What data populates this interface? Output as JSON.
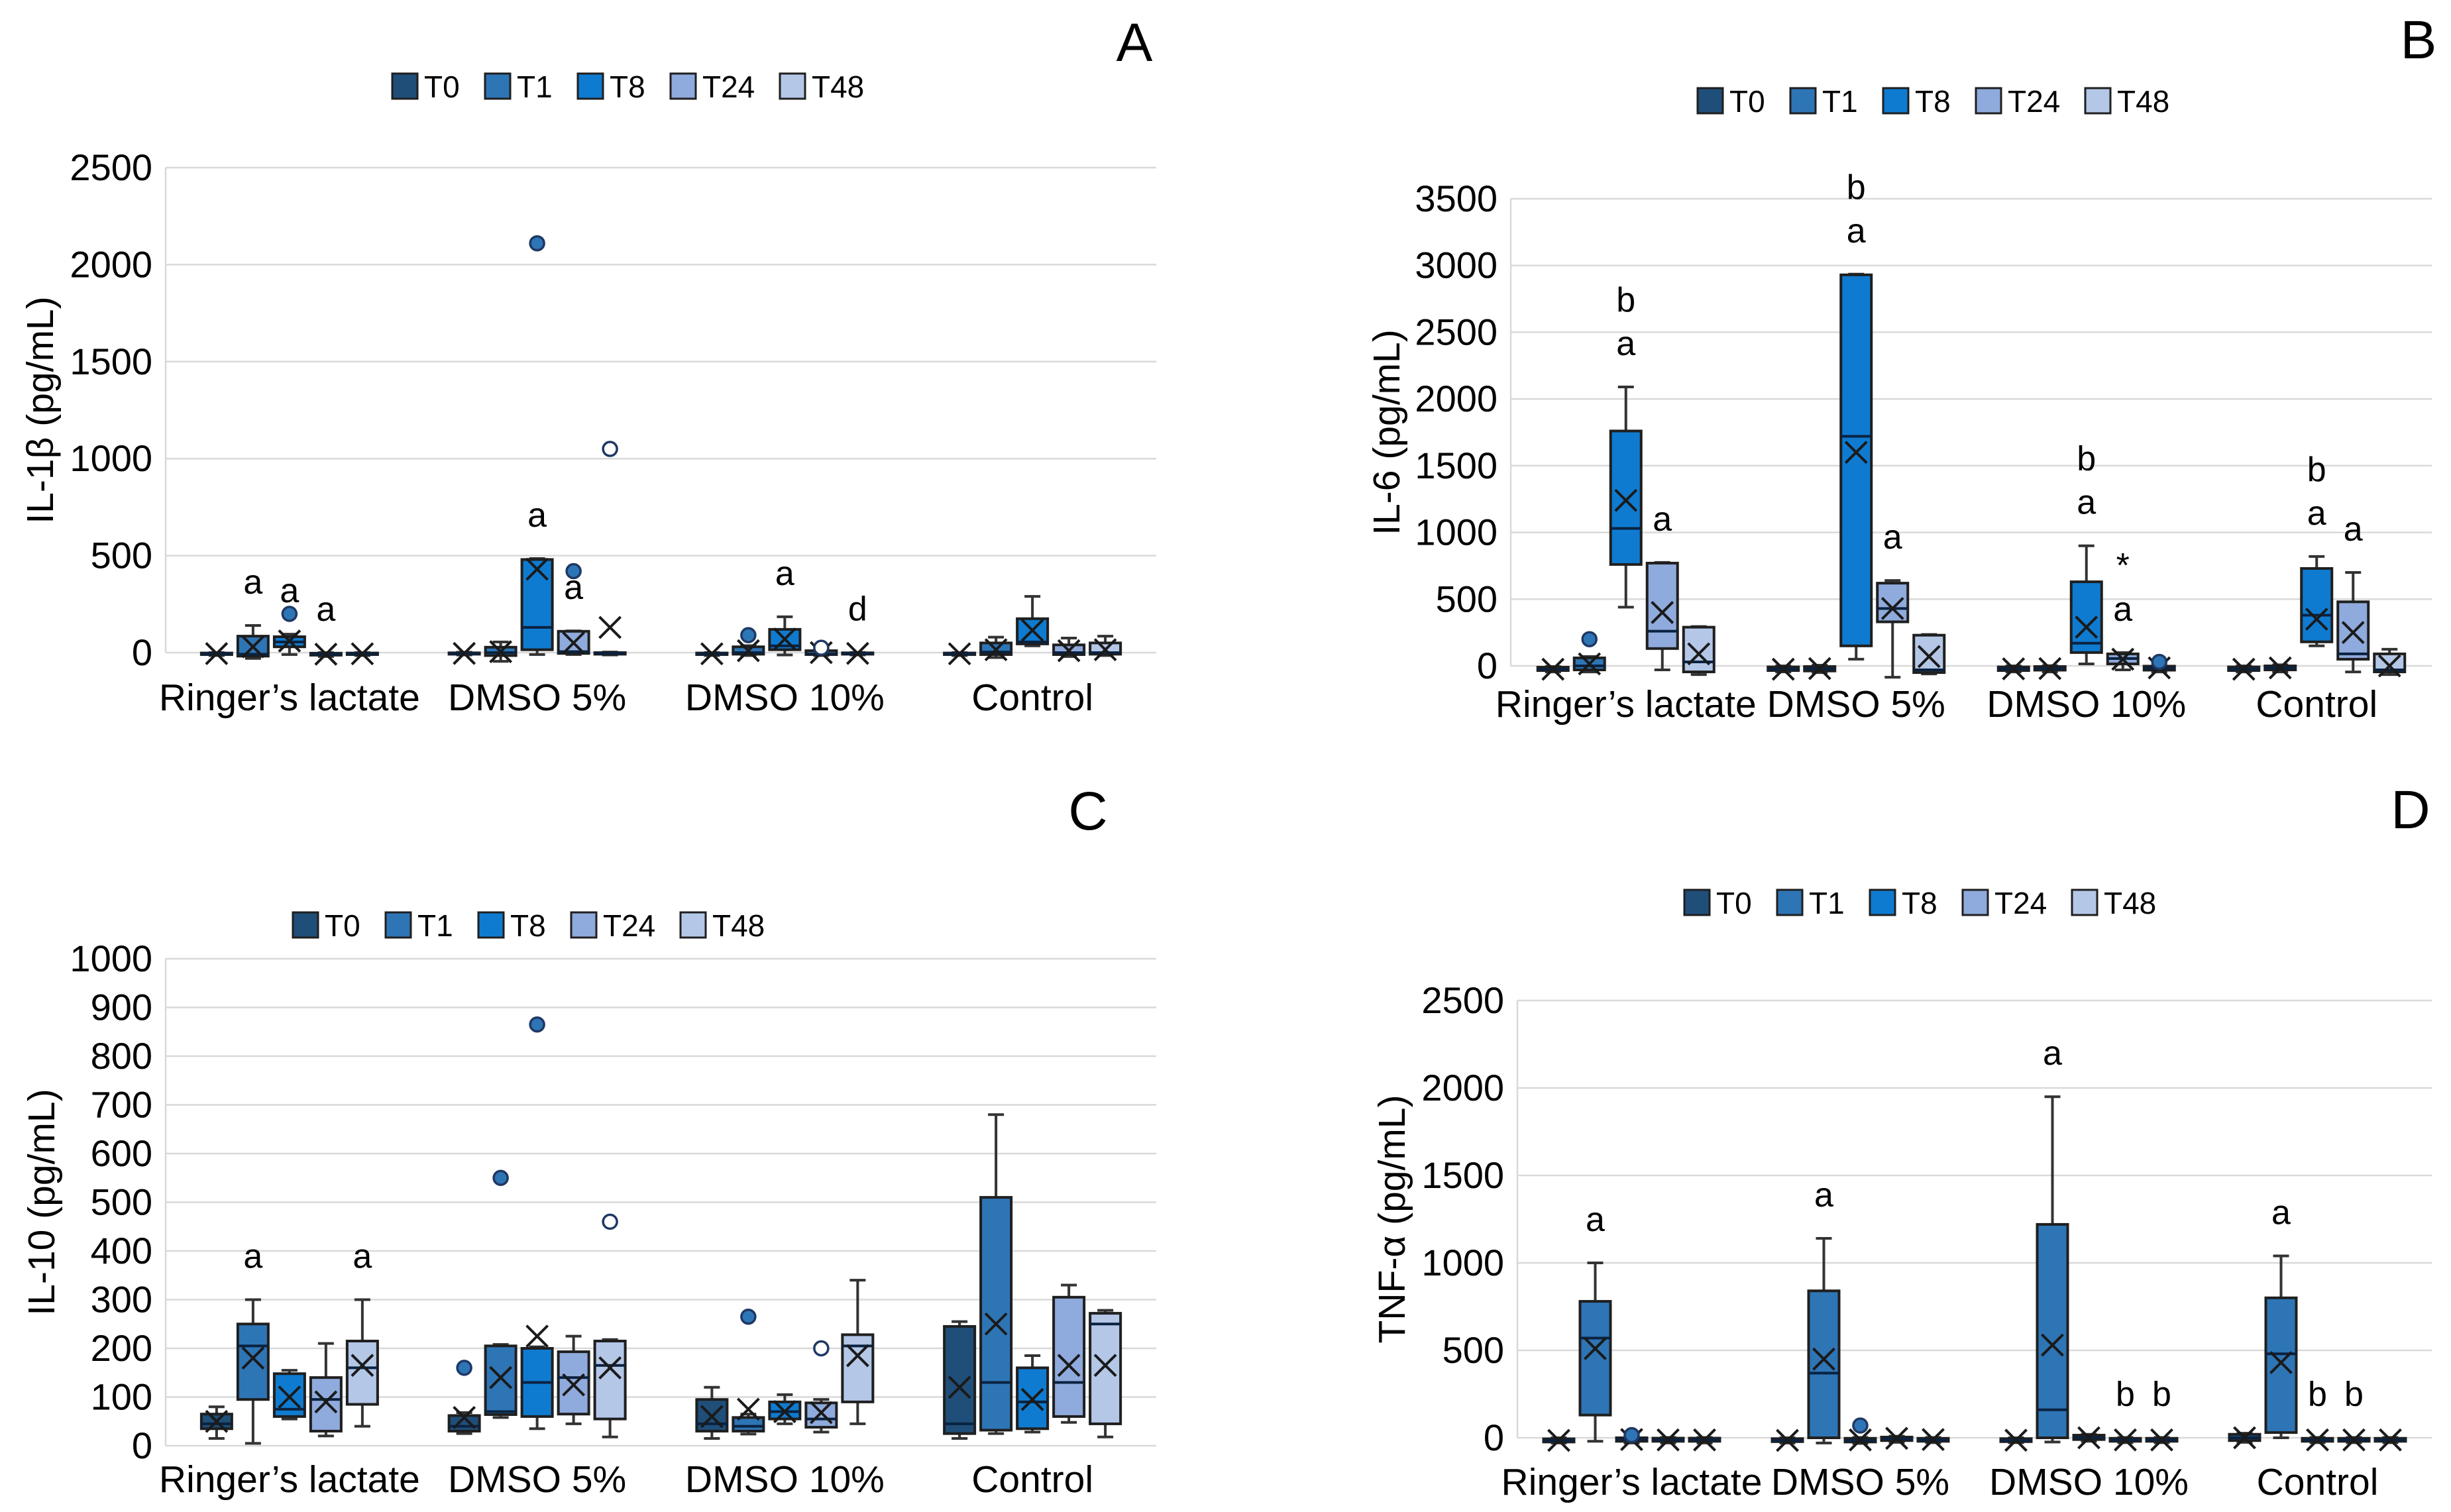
{
  "figure": {
    "background": "#ffffff",
    "description_visible_text_only": true
  },
  "legend": {
    "labels": [
      "T0",
      "T1",
      "T8",
      "T24",
      "T48"
    ]
  },
  "colors": {
    "T0": "#1F4E79",
    "T1": "#2E75B6",
    "T8": "#0F7BD0",
    "T24": "#8FAADC",
    "T48": "#B4C7E7",
    "grid": "#d9d9d9",
    "box_border": "#1f1f1f",
    "whisker": "#333333",
    "median": "#0a2240",
    "mean_marker": "#1a1a1a",
    "outlier_stroke": "#1f3864",
    "outlier_fill": "#2e75b6",
    "outlier_open_fill": "#ffffff",
    "text": "#000000"
  },
  "chart_data": [
    {
      "id": "A",
      "letter": "A",
      "type": "box",
      "title": "",
      "ylabel": "IL-1β (pg/mL)",
      "xlabel": "",
      "ylim": [
        0,
        2500
      ],
      "ytick_step": 500,
      "grid": true,
      "legend_position": "top",
      "series": [
        "T0",
        "T1",
        "T8",
        "T24",
        "T48"
      ],
      "categories": [
        "Ringer’s lactate",
        "DMSO 5%",
        "DMSO 10%",
        "Control"
      ],
      "groups": [
        [
          {
            "w": [
              -15,
              -10,
              -6,
              -2,
              0
            ],
            "m": -5
          },
          {
            "w": [
              -30,
              -18,
              -8,
              85,
              140
            ],
            "m": 30,
            "s": [
              "a"
            ]
          },
          {
            "w": [
              -10,
              30,
              55,
              82,
              95
            ],
            "m": 60,
            "o": [
              200
            ],
            "s": [
              "a"
            ]
          },
          {
            "w": [
              -20,
              -13,
              -8,
              -3,
              0
            ],
            "m": -8,
            "s": [
              "a"
            ]
          },
          {
            "w": [
              -15,
              -10,
              -6,
              -2,
              0
            ],
            "m": -6
          }
        ],
        [
          {
            "w": [
              -12,
              -8,
              -5,
              -1,
              2
            ],
            "m": -4
          },
          {
            "w": [
              -45,
              -15,
              0,
              28,
              55
            ],
            "m": 5
          },
          {
            "w": [
              -10,
              15,
              130,
              480,
              485
            ],
            "m": 430,
            "o": [
              2110
            ],
            "s": [
              "a"
            ]
          },
          {
            "w": [
              -10,
              -4,
              5,
              110,
              112
            ],
            "m": 50,
            "o": [
              420
            ],
            "s": [
              "a"
            ]
          },
          {
            "w": [
              -12,
              -8,
              -4,
              0,
              3
            ],
            "m": 130,
            "oo": [
              1050
            ]
          }
        ],
        [
          {
            "w": [
              -15,
              -10,
              -6,
              -2,
              0
            ],
            "m": -6
          },
          {
            "w": [
              -15,
              -8,
              0,
              30,
              36
            ],
            "m": 10,
            "o": [
              90
            ]
          },
          {
            "w": [
              -12,
              15,
              35,
              120,
              185
            ],
            "m": 70,
            "s": [
              "a"
            ]
          },
          {
            "w": [
              -15,
              -10,
              -5,
              10,
              14
            ],
            "m": 0,
            "oo": [
              25
            ]
          },
          {
            "w": [
              -12,
              -8,
              -5,
              -1,
              1
            ],
            "m": -4,
            "s": [
              "d"
            ]
          }
        ],
        [
          {
            "w": [
              -15,
              -10,
              -6,
              -2,
              0
            ],
            "m": -6
          },
          {
            "w": [
              -25,
              -10,
              3,
              50,
              80
            ],
            "m": 15
          },
          {
            "w": [
              35,
              45,
              55,
              175,
              290
            ],
            "m": 115
          },
          {
            "w": [
              -20,
              -10,
              0,
              40,
              75
            ],
            "m": 10
          },
          {
            "w": [
              -15,
              -8,
              0,
              50,
              85
            ],
            "m": 15
          }
        ]
      ]
    },
    {
      "id": "B",
      "letter": "B",
      "type": "box",
      "title": "",
      "ylabel": "IL-6 (pg/mL)",
      "xlabel": "",
      "ylim": [
        0,
        3500
      ],
      "ytick_step": 500,
      "grid": true,
      "legend_position": "top",
      "series": [
        "T0",
        "T1",
        "T8",
        "T24",
        "T48"
      ],
      "categories": [
        "Ringer’s lactate",
        "DMSO 5%",
        "DMSO 10%",
        "Control"
      ],
      "groups": [
        [
          {
            "w": [
              -45,
              -35,
              -25,
              -10,
              -5
            ],
            "m": -25
          },
          {
            "w": [
              -45,
              -30,
              0,
              60,
              70
            ],
            "m": 15,
            "o": [
              200
            ]
          },
          {
            "w": [
              440,
              760,
              1030,
              1760,
              2090
            ],
            "m": 1240,
            "s": [
              "a",
              "b"
            ]
          },
          {
            "w": [
              -30,
              130,
              260,
              770,
              775
            ],
            "m": 400,
            "s": [
              "a"
            ]
          },
          {
            "w": [
              -65,
              -45,
              30,
              290,
              295
            ],
            "m": 90
          }
        ],
        [
          {
            "w": [
              -45,
              -35,
              -25,
              -8,
              0
            ],
            "m": -25
          },
          {
            "w": [
              -50,
              -38,
              -22,
              -5,
              5
            ],
            "m": -20
          },
          {
            "w": [
              50,
              150,
              1720,
              2930,
              2935
            ],
            "m": 1600,
            "s": [
              "a",
              "b"
            ]
          },
          {
            "w": [
              -85,
              330,
              430,
              620,
              640
            ],
            "m": 430,
            "s": [
              "a"
            ]
          },
          {
            "w": [
              -60,
              -50,
              -30,
              230,
              235
            ],
            "m": 70
          }
        ],
        [
          {
            "w": [
              -45,
              -35,
              -22,
              -8,
              0
            ],
            "m": -22
          },
          {
            "w": [
              -45,
              -32,
              -20,
              -5,
              2
            ],
            "m": -20
          },
          {
            "w": [
              15,
              100,
              170,
              630,
              900
            ],
            "m": 290,
            "s": [
              "a",
              "b"
            ]
          },
          {
            "w": [
              -30,
              15,
              55,
              90,
              100
            ],
            "m": 50,
            "s": [
              "a",
              "*"
            ]
          },
          {
            "w": [
              -45,
              -32,
              -18,
              -2,
              3
            ],
            "m": -15,
            "o": [
              30
            ]
          }
        ],
        [
          {
            "w": [
              -45,
              -35,
              -25,
              -8,
              0
            ],
            "m": -25
          },
          {
            "w": [
              -45,
              -30,
              -15,
              0,
              8
            ],
            "m": -15
          },
          {
            "w": [
              150,
              180,
              380,
              730,
              820
            ],
            "m": 350,
            "s": [
              "a",
              "b"
            ]
          },
          {
            "w": [
              -45,
              50,
              90,
              480,
              700
            ],
            "m": 250,
            "s": [
              "a"
            ]
          },
          {
            "w": [
              -65,
              -45,
              -30,
              90,
              125
            ],
            "m": 0
          }
        ]
      ]
    },
    {
      "id": "C",
      "letter": "C",
      "type": "box",
      "title": "",
      "ylabel": "IL-10 (pg/mL)",
      "xlabel": "",
      "ylim": [
        0,
        1000
      ],
      "ytick_step": 100,
      "grid": true,
      "legend_position": "top",
      "series": [
        "T0",
        "T1",
        "T8",
        "T24",
        "T48"
      ],
      "categories": [
        "Ringer’s lactate",
        "DMSO 5%",
        "DMSO 10%",
        "Control"
      ],
      "groups": [
        [
          {
            "w": [
              15,
              35,
              45,
              65,
              80
            ],
            "m": 50
          },
          {
            "w": [
              5,
              95,
              205,
              250,
              300
            ],
            "m": 180,
            "s": [
              "a"
            ]
          },
          {
            "w": [
              55,
              60,
              75,
              148,
              155
            ],
            "m": 100
          },
          {
            "w": [
              20,
              30,
              95,
              140,
              210
            ],
            "m": 90
          },
          {
            "w": [
              40,
              85,
              160,
              215,
              300
            ],
            "m": 165,
            "s": [
              "a"
            ]
          }
        ],
        [
          {
            "w": [
              25,
              30,
              40,
              62,
              68
            ],
            "m": 58,
            "o": [
              160
            ]
          },
          {
            "w": [
              58,
              64,
              70,
              205,
              208
            ],
            "m": 140,
            "o": [
              550
            ]
          },
          {
            "w": [
              35,
              60,
              130,
              200,
              203
            ],
            "m": 225,
            "o": [
              865
            ]
          },
          {
            "w": [
              45,
              65,
              140,
              193,
              225
            ],
            "m": 125
          },
          {
            "w": [
              18,
              55,
              165,
              215,
              218
            ],
            "m": 160,
            "oo": [
              460
            ]
          }
        ],
        [
          {
            "w": [
              15,
              30,
              45,
              95,
              120
            ],
            "m": 60
          },
          {
            "w": [
              24,
              30,
              40,
              58,
              65
            ],
            "m": 75,
            "o": [
              265
            ]
          },
          {
            "w": [
              45,
              55,
              70,
              90,
              105
            ],
            "m": 70
          },
          {
            "w": [
              28,
              38,
              55,
              88,
              95
            ],
            "m": 68,
            "oo": [
              200
            ]
          },
          {
            "w": [
              45,
              90,
              205,
              228,
              340
            ],
            "m": 185
          }
        ],
        [
          {
            "w": [
              15,
              25,
              45,
              245,
              255
            ],
            "m": 120
          },
          {
            "w": [
              25,
              32,
              130,
              510,
              680
            ],
            "m": 250
          },
          {
            "w": [
              28,
              35,
              90,
              160,
              185
            ],
            "m": 95
          },
          {
            "w": [
              48,
              60,
              130,
              305,
              330
            ],
            "m": 165
          },
          {
            "w": [
              18,
              45,
              250,
              272,
              278
            ],
            "m": 165
          }
        ]
      ]
    },
    {
      "id": "D",
      "letter": "D",
      "type": "box",
      "title": "",
      "ylabel": "TNF-α (pg/mL)",
      "xlabel": "",
      "ylim": [
        0,
        2500
      ],
      "ytick_step": 500,
      "grid": true,
      "legend_position": "top",
      "series": [
        "T0",
        "T1",
        "T8",
        "T24",
        "T48"
      ],
      "categories": [
        "Ringer’s lactate",
        "DMSO 5%",
        "DMSO 10%",
        "Control"
      ],
      "groups": [
        [
          {
            "w": [
              -30,
              -24,
              -15,
              -6,
              0
            ],
            "m": -15
          },
          {
            "w": [
              -20,
              130,
              570,
              780,
              1000
            ],
            "m": 510,
            "s": [
              "a"
            ]
          },
          {
            "w": [
              -30,
              -20,
              -10,
              0,
              5
            ],
            "m": -10,
            "o": [
              15
            ]
          },
          {
            "w": [
              -30,
              -20,
              -12,
              -2,
              2
            ],
            "m": -12
          },
          {
            "w": [
              -30,
              -20,
              -12,
              -2,
              2
            ],
            "m": -12
          }
        ],
        [
          {
            "w": [
              -30,
              -22,
              -15,
              -5,
              0
            ],
            "m": -15
          },
          {
            "w": [
              -30,
              0,
              370,
              840,
              1140
            ],
            "m": 450,
            "s": [
              "a"
            ]
          },
          {
            "w": [
              -32,
              -24,
              -15,
              -3,
              2
            ],
            "m": -12,
            "o": [
              70
            ]
          },
          {
            "w": [
              -26,
              -16,
              -6,
              4,
              9
            ],
            "m": -3
          },
          {
            "w": [
              -28,
              -20,
              -12,
              -3,
              2
            ],
            "m": -10
          }
        ],
        [
          {
            "w": [
              -28,
              -22,
              -14,
              -5,
              0
            ],
            "m": -14
          },
          {
            "w": [
              -24,
              0,
              160,
              1220,
              1950
            ],
            "m": 530,
            "s": [
              "a"
            ]
          },
          {
            "w": [
              -20,
              -10,
              0,
              15,
              20
            ],
            "m": 0
          },
          {
            "w": [
              -28,
              -20,
              -12,
              -3,
              2
            ],
            "m": -12,
            "s": [
              "b"
            ]
          },
          {
            "w": [
              -28,
              -20,
              -12,
              -3,
              2
            ],
            "m": -12,
            "s": [
              "b"
            ]
          }
        ],
        [
          {
            "w": [
              -26,
              -16,
              0,
              20,
              26
            ],
            "m": 0
          },
          {
            "w": [
              0,
              30,
              480,
              800,
              1040
            ],
            "m": 430,
            "s": [
              "a"
            ]
          },
          {
            "w": [
              -28,
              -20,
              -12,
              -3,
              2
            ],
            "m": -12,
            "s": [
              "b"
            ]
          },
          {
            "w": [
              -28,
              -20,
              -12,
              -3,
              2
            ],
            "m": -12,
            "s": [
              "b"
            ]
          },
          {
            "w": [
              -28,
              -20,
              -12,
              -3,
              2
            ],
            "m": -12
          }
        ]
      ]
    }
  ]
}
